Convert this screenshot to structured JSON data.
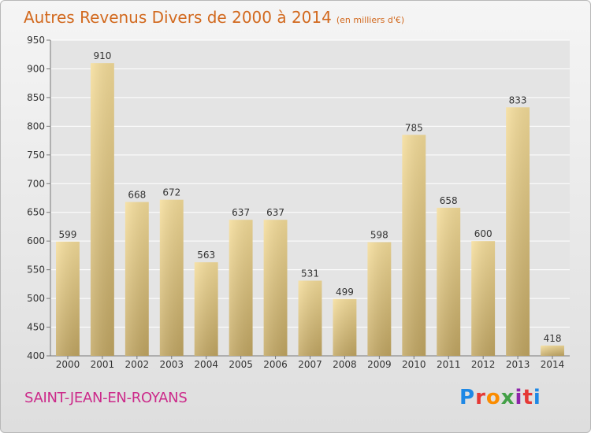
{
  "header": {
    "title": "Autres Revenus Divers de 2000 à 2014",
    "subtitle": "(en milliers d'€)"
  },
  "footer": {
    "location": "SAINT-JEAN-EN-ROYANS",
    "brand": "Proxiti",
    "brand_colors": [
      "#1e88e5",
      "#e53935",
      "#fb8c00",
      "#43a047",
      "#8e24aa",
      "#e53935",
      "#1e88e5"
    ]
  },
  "colors": {
    "bar_light": "#f5dd9a",
    "bar_dark": "#c2a763",
    "grid": "#ffffff",
    "axis_text": "#333333",
    "title": "#d2691e",
    "location": "#cc2a8a"
  },
  "chart_data": {
    "type": "bar",
    "title": "Autres Revenus Divers de 2000 à 2014",
    "subtitle": "(en milliers d'€)",
    "xlabel": "",
    "ylabel": "",
    "categories": [
      "2000",
      "2001",
      "2002",
      "2003",
      "2004",
      "2005",
      "2006",
      "2007",
      "2008",
      "2009",
      "2010",
      "2011",
      "2012",
      "2013",
      "2014"
    ],
    "values": [
      599,
      910,
      668,
      672,
      563,
      637,
      637,
      531,
      499,
      598,
      785,
      658,
      600,
      833,
      418
    ],
    "data_labels": [
      "599",
      "910",
      "668",
      "672",
      "563",
      "637",
      "637",
      "531",
      "499",
      "598",
      "785",
      "658",
      "600",
      "833",
      "418"
    ],
    "ylim": [
      400,
      950
    ],
    "yticks": [
      400,
      450,
      500,
      550,
      600,
      650,
      700,
      750,
      800,
      850,
      900,
      950
    ],
    "grid": true,
    "legend": "none"
  }
}
